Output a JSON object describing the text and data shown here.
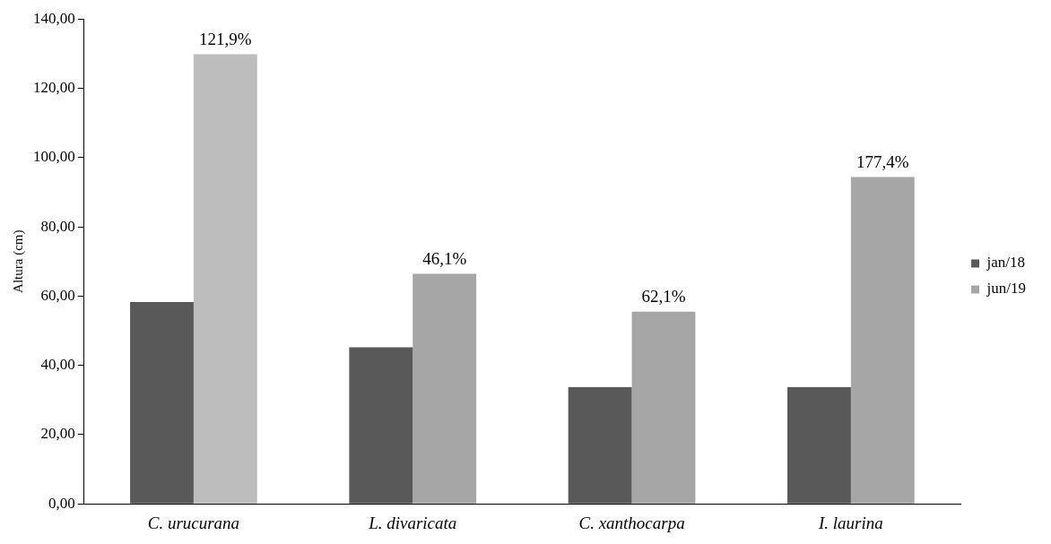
{
  "chart_data": {
    "type": "bar",
    "ylabel": "Altura (cm)",
    "categories": [
      "C. urucurana",
      "L. divaricata",
      "C. xanthocarpa",
      "I. laurina"
    ],
    "series": [
      {
        "name": "jan/18",
        "color": "#595959",
        "values": [
          58.3,
          45.2,
          33.7,
          33.7
        ]
      },
      {
        "name": "jun/19",
        "color": "#a6a6a6",
        "colors": [
          "#bdbdbd",
          "#a6a6a6",
          "#a6a6a6",
          "#a6a6a6"
        ],
        "values": [
          129.8,
          66.4,
          55.5,
          94.4
        ]
      }
    ],
    "ylim": [
      0,
      140
    ],
    "yticks": [
      {
        "value": 0,
        "label": "0,00"
      },
      {
        "value": 20,
        "label": "20,00"
      },
      {
        "value": 40,
        "label": "40,00"
      },
      {
        "value": 60,
        "label": "60,00"
      },
      {
        "value": 80,
        "label": "80,00"
      },
      {
        "value": 100,
        "label": "100,00"
      },
      {
        "value": 120,
        "label": "120,00"
      },
      {
        "value": 140,
        "label": "140,00"
      }
    ],
    "annotations": [
      {
        "text": "121,9%",
        "x": "C. urucurana",
        "y": 129.8
      },
      {
        "text": "46,1%",
        "x": "L. divaricata",
        "y": 66.4
      },
      {
        "text": "62,1%",
        "x": "C. xanthocarpa",
        "y": 55.5
      },
      {
        "text": "177,4%",
        "x": "I. laurina",
        "y": 94.4
      }
    ],
    "grid": false,
    "legend": "right"
  }
}
